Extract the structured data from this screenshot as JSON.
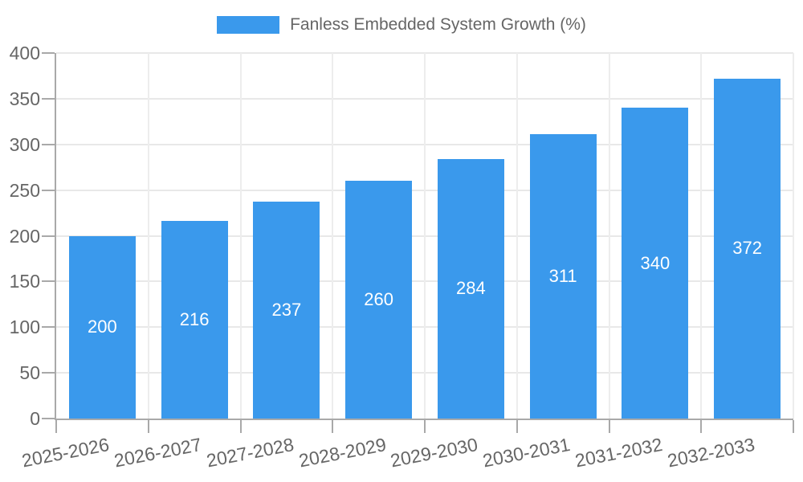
{
  "chart_data": {
    "type": "bar",
    "title": "",
    "legend": [
      "Fanless Embedded System Growth (%)"
    ],
    "legend_position": "top",
    "categories": [
      "2025-2026",
      "2026-2027",
      "2027-2028",
      "2028-2029",
      "2029-2030",
      "2030-2031",
      "2031-2032",
      "2032-2033"
    ],
    "series": [
      {
        "name": "Fanless Embedded System Growth (%)",
        "values": [
          200,
          216,
          237,
          260,
          284,
          311,
          340,
          372
        ]
      }
    ],
    "value_labels_shown": true,
    "xlabel": "",
    "ylabel": "",
    "ylim": [
      0,
      400
    ],
    "yticks": [
      0,
      50,
      100,
      150,
      200,
      250,
      300,
      350,
      400
    ],
    "grid": true,
    "bar_color": "#3a99ec",
    "value_label_color": "#ffffff",
    "axis_color": "#a9a9a9",
    "grid_color_h": "#e8e8e8",
    "grid_color_v": "#ededed",
    "text_color": "#666666"
  }
}
